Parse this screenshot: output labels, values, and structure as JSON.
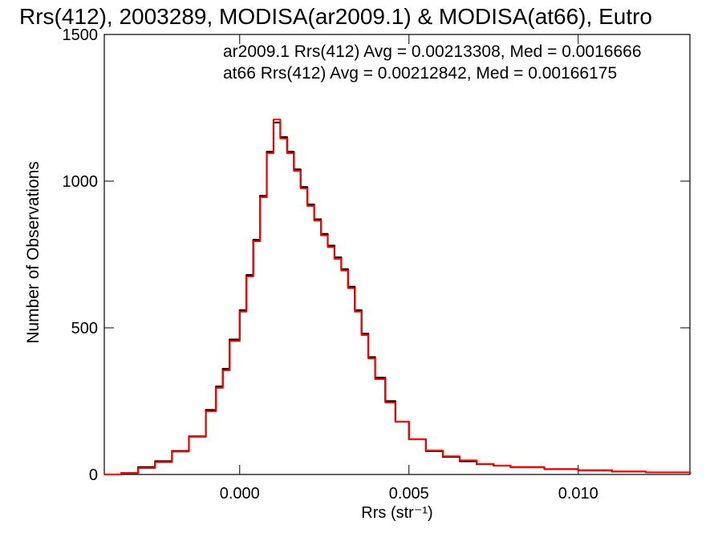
{
  "chart_data": {
    "type": "line",
    "title": "Rrs(412), 2003289, MODISA(ar2009.1) & MODISA(at66), Eutro",
    "xlabel": "Rrs (str⁻¹)",
    "ylabel": "Number of Observations",
    "xlim": [
      -0.004,
      0.0133
    ],
    "ylim": [
      0,
      1500
    ],
    "xticks": [
      {
        "value": 0.0,
        "label": "0.000"
      },
      {
        "value": 0.005,
        "label": "0.005"
      },
      {
        "value": 0.01,
        "label": "0.010"
      }
    ],
    "yticks": [
      {
        "value": 0,
        "label": "0"
      },
      {
        "value": 500,
        "label": "500"
      },
      {
        "value": 1000,
        "label": "1000"
      },
      {
        "value": 1500,
        "label": "1500"
      }
    ],
    "series": [
      {
        "name": "ar2009.1",
        "color": "#000000",
        "x": [
          -0.004,
          -0.0035,
          -0.003,
          -0.0025,
          -0.002,
          -0.0015,
          -0.001,
          -0.0007,
          -0.0005,
          -0.0003,
          0.0,
          0.0002,
          0.0004,
          0.0006,
          0.0008,
          0.001,
          0.0012,
          0.0014,
          0.0016,
          0.0018,
          0.002,
          0.0022,
          0.0024,
          0.0026,
          0.0028,
          0.003,
          0.0032,
          0.0034,
          0.0036,
          0.0038,
          0.004,
          0.0043,
          0.0046,
          0.005,
          0.0055,
          0.006,
          0.0065,
          0.007,
          0.0075,
          0.008,
          0.009,
          0.01,
          0.011,
          0.012,
          0.0133
        ],
        "values": [
          0,
          5,
          25,
          45,
          80,
          130,
          220,
          300,
          360,
          460,
          560,
          680,
          800,
          950,
          1100,
          1200,
          1150,
          1100,
          1040,
          980,
          920,
          870,
          820,
          780,
          740,
          700,
          640,
          560,
          480,
          400,
          330,
          250,
          180,
          120,
          80,
          60,
          45,
          35,
          30,
          25,
          18,
          14,
          10,
          7,
          3
        ]
      },
      {
        "name": "at66",
        "color": "#ff0000",
        "x": [
          -0.004,
          -0.0035,
          -0.003,
          -0.0025,
          -0.002,
          -0.0015,
          -0.001,
          -0.0007,
          -0.0005,
          -0.0003,
          0.0,
          0.0002,
          0.0004,
          0.0006,
          0.0008,
          0.001,
          0.0012,
          0.0014,
          0.0016,
          0.0018,
          0.002,
          0.0022,
          0.0024,
          0.0026,
          0.0028,
          0.003,
          0.0032,
          0.0034,
          0.0036,
          0.0038,
          0.004,
          0.0043,
          0.0046,
          0.005,
          0.0055,
          0.006,
          0.0065,
          0.007,
          0.0075,
          0.008,
          0.009,
          0.01,
          0.011,
          0.012,
          0.0133
        ],
        "values": [
          0,
          5,
          22,
          42,
          78,
          128,
          215,
          295,
          355,
          455,
          555,
          675,
          795,
          945,
          1095,
          1210,
          1145,
          1095,
          1035,
          975,
          915,
          865,
          815,
          775,
          735,
          695,
          635,
          555,
          475,
          395,
          325,
          245,
          180,
          120,
          82,
          62,
          48,
          36,
          30,
          24,
          18,
          13,
          10,
          7,
          3
        ]
      }
    ],
    "annotations": [
      {
        "text": "ar2009.1 Rrs(412) Avg = 0.00213308, Med = 0.0016666",
        "color": "#000000"
      },
      {
        "text": "at66 Rrs(412) Avg = 0.00212842, Med = 0.00166175",
        "color": "#ff0000"
      }
    ],
    "grid": false,
    "legend": "none"
  }
}
